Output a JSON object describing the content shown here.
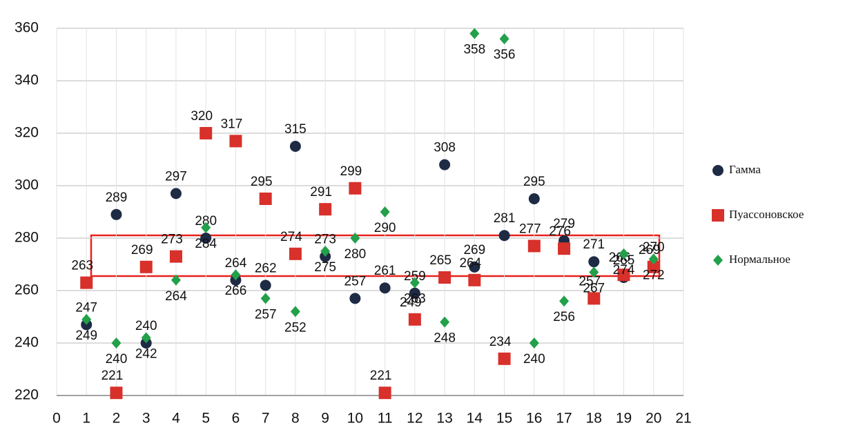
{
  "chart_data": {
    "type": "scatter",
    "x": [
      1,
      2,
      3,
      4,
      5,
      6,
      7,
      8,
      9,
      10,
      11,
      12,
      13,
      14,
      15,
      16,
      17,
      18,
      19,
      20
    ],
    "series": [
      {
        "name": "Гамма",
        "color": "#1e2b44",
        "values": [
          247,
          289,
          240,
          297,
          280,
          264,
          262,
          315,
          273,
          257,
          261,
          259,
          308,
          269,
          281,
          295,
          279,
          271,
          265,
          270
        ]
      },
      {
        "name": "Пуассоновское",
        "color": "#d8302a",
        "values": [
          263,
          221,
          269,
          273,
          320,
          317,
          295,
          274,
          291,
          299,
          221,
          249,
          265,
          264,
          234,
          277,
          276,
          257,
          266,
          269
        ]
      },
      {
        "name": "Нормальное",
        "color": "#22a04a",
        "values": [
          249,
          240,
          242,
          264,
          284,
          266,
          257,
          252,
          275,
          280,
          290,
          263,
          248,
          358,
          356,
          240,
          256,
          267,
          274,
          272
        ]
      }
    ],
    "xlim": [
      0,
      21
    ],
    "xticks": [
      0,
      1,
      2,
      3,
      4,
      5,
      6,
      7,
      8,
      9,
      10,
      11,
      12,
      13,
      14,
      15,
      16,
      17,
      18,
      19,
      20,
      21
    ],
    "ylim": [
      220,
      360
    ],
    "yticks": [
      220,
      240,
      260,
      280,
      300,
      320,
      340,
      360
    ],
    "grid": true,
    "legend": "right"
  }
}
